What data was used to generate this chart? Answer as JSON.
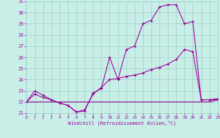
{
  "xlabel": "Windchill (Refroidissement éolien,°C)",
  "bg_color": "#c8eee8",
  "line_color": "#990099",
  "grid_color": "#a0ccc4",
  "xlim_min": 0,
  "xlim_max": 23,
  "ylim_min": 21,
  "ylim_max": 31,
  "xticks": [
    0,
    1,
    2,
    3,
    4,
    5,
    6,
    7,
    8,
    9,
    10,
    11,
    12,
    13,
    14,
    15,
    16,
    17,
    18,
    19,
    20,
    21,
    22,
    23
  ],
  "yticks": [
    21,
    22,
    23,
    24,
    25,
    26,
    27,
    28,
    29,
    30,
    31
  ],
  "line1_x": [
    0,
    1,
    2,
    3,
    4,
    5,
    6,
    7,
    8,
    9,
    10,
    11,
    12,
    13,
    14,
    15,
    16,
    17,
    18,
    19,
    20,
    21,
    22,
    23
  ],
  "line1_y": [
    22.0,
    23.0,
    22.6,
    22.2,
    21.9,
    21.7,
    21.1,
    21.2,
    22.8,
    23.2,
    26.0,
    24.0,
    26.7,
    27.0,
    29.0,
    29.3,
    30.5,
    30.7,
    30.7,
    29.0,
    29.2,
    22.2,
    22.2,
    22.2
  ],
  "line2_x": [
    0,
    1,
    2,
    3,
    4,
    5,
    6,
    7,
    8,
    9,
    10,
    11,
    12,
    13,
    14,
    15,
    16,
    17,
    18,
    19,
    20,
    21,
    22,
    23
  ],
  "line2_y": [
    22.0,
    22.0,
    22.0,
    22.0,
    22.0,
    22.0,
    22.0,
    22.0,
    22.0,
    22.0,
    22.0,
    22.0,
    22.0,
    22.0,
    22.0,
    22.0,
    22.0,
    22.0,
    22.0,
    22.0,
    22.0,
    22.0,
    22.0,
    22.2
  ],
  "line3_x": [
    0,
    1,
    2,
    3,
    4,
    5,
    6,
    7,
    8,
    9,
    10,
    11,
    12,
    13,
    14,
    15,
    16,
    17,
    18,
    19,
    20,
    21,
    22,
    23
  ],
  "line3_y": [
    22.0,
    22.7,
    22.4,
    22.2,
    21.9,
    21.7,
    21.1,
    21.3,
    22.7,
    23.3,
    24.0,
    24.1,
    24.3,
    24.4,
    24.6,
    24.9,
    25.1,
    25.4,
    25.8,
    26.7,
    26.5,
    22.2,
    22.2,
    22.3
  ]
}
